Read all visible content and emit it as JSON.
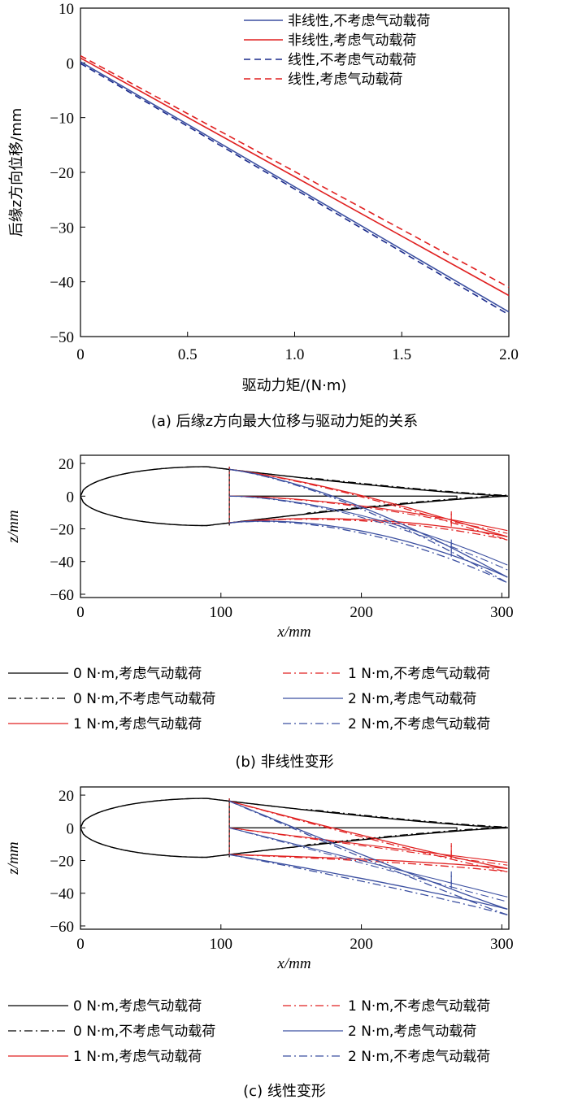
{
  "chart_data": [
    {
      "type": "line",
      "caption": "(a) 后缘z方向最大位移与驱动力矩的关系",
      "xlabel": "驱动力矩/(N·m)",
      "ylabel": "后缘z方向位移/mm",
      "xlim": [
        0,
        2.0
      ],
      "ylim": [
        -50,
        10
      ],
      "xticks": [
        "0",
        "0.5",
        "1.0",
        "1.5",
        "2.0"
      ],
      "yticks": [
        "10",
        "0",
        "−10",
        "−20",
        "−30",
        "−40",
        "−50"
      ],
      "legend_position": "top-right",
      "x": [
        0,
        2.0
      ],
      "series": [
        {
          "name": "非线性,不考虑气动载荷",
          "color": "#3b4fa0",
          "dash": "solid",
          "values": [
            0.2,
            -45.5
          ]
        },
        {
          "name": "非线性,考虑气动载荷",
          "color": "#e02020",
          "dash": "solid",
          "values": [
            0.9,
            -42.5
          ]
        },
        {
          "name": "线性,不考虑气动载荷",
          "color": "#1a2a8c",
          "dash": "dashed",
          "values": [
            -0.1,
            -46.0
          ]
        },
        {
          "name": "线性,考虑气动载荷",
          "color": "#e02020",
          "dash": "dashed",
          "values": [
            1.3,
            -41.0
          ]
        }
      ]
    },
    {
      "type": "line",
      "caption": "(b) 非线性变形",
      "xlabel": "x/mm",
      "ylabel": "z/mm",
      "xlim": [
        0,
        305
      ],
      "ylim": [
        -62,
        25
      ],
      "xticks": [
        "0",
        "100",
        "200",
        "300"
      ],
      "yticks": [
        "20",
        "0",
        "−20",
        "−40",
        "−60"
      ],
      "legend": [
        {
          "name": "0 N·m,考虑气动载荷",
          "color": "#000000",
          "dash": "solid"
        },
        {
          "name": "0 N·m,不考虑气动载荷",
          "color": "#000000",
          "dash": "dashdot"
        },
        {
          "name": "1 N·m,考虑气动载荷",
          "color": "#e02020",
          "dash": "solid"
        },
        {
          "name": "1 N·m,不考虑气动载荷",
          "color": "#e02020",
          "dash": "dashdot"
        },
        {
          "name": "2 N·m,考虑气动载荷",
          "color": "#3b4fa0",
          "dash": "solid"
        },
        {
          "name": "2 N·m,不考虑气动载荷",
          "color": "#3b4fa0",
          "dash": "dashdot"
        }
      ]
    },
    {
      "type": "line",
      "caption": "(c) 线性变形",
      "xlabel": "x/mm",
      "ylabel": "z/mm",
      "xlim": [
        0,
        305
      ],
      "ylim": [
        -62,
        25
      ],
      "xticks": [
        "0",
        "100",
        "200",
        "300"
      ],
      "yticks": [
        "20",
        "0",
        "−20",
        "−40",
        "−60"
      ],
      "legend": [
        {
          "name": "0 N·m,考虑气动载荷",
          "color": "#000000",
          "dash": "solid"
        },
        {
          "name": "0 N·m,不考虑气动载荷",
          "color": "#000000",
          "dash": "dashdot"
        },
        {
          "name": "1 N·m,考虑气动载荷",
          "color": "#e02020",
          "dash": "solid"
        },
        {
          "name": "1 N·m,不考虑气动载荷",
          "color": "#e02020",
          "dash": "dashdot"
        },
        {
          "name": "2 N·m,考虑气动载荷",
          "color": "#3b4fa0",
          "dash": "solid"
        },
        {
          "name": "2 N·m,不考虑气动载荷",
          "color": "#3b4fa0",
          "dash": "dashdot"
        }
      ]
    }
  ]
}
